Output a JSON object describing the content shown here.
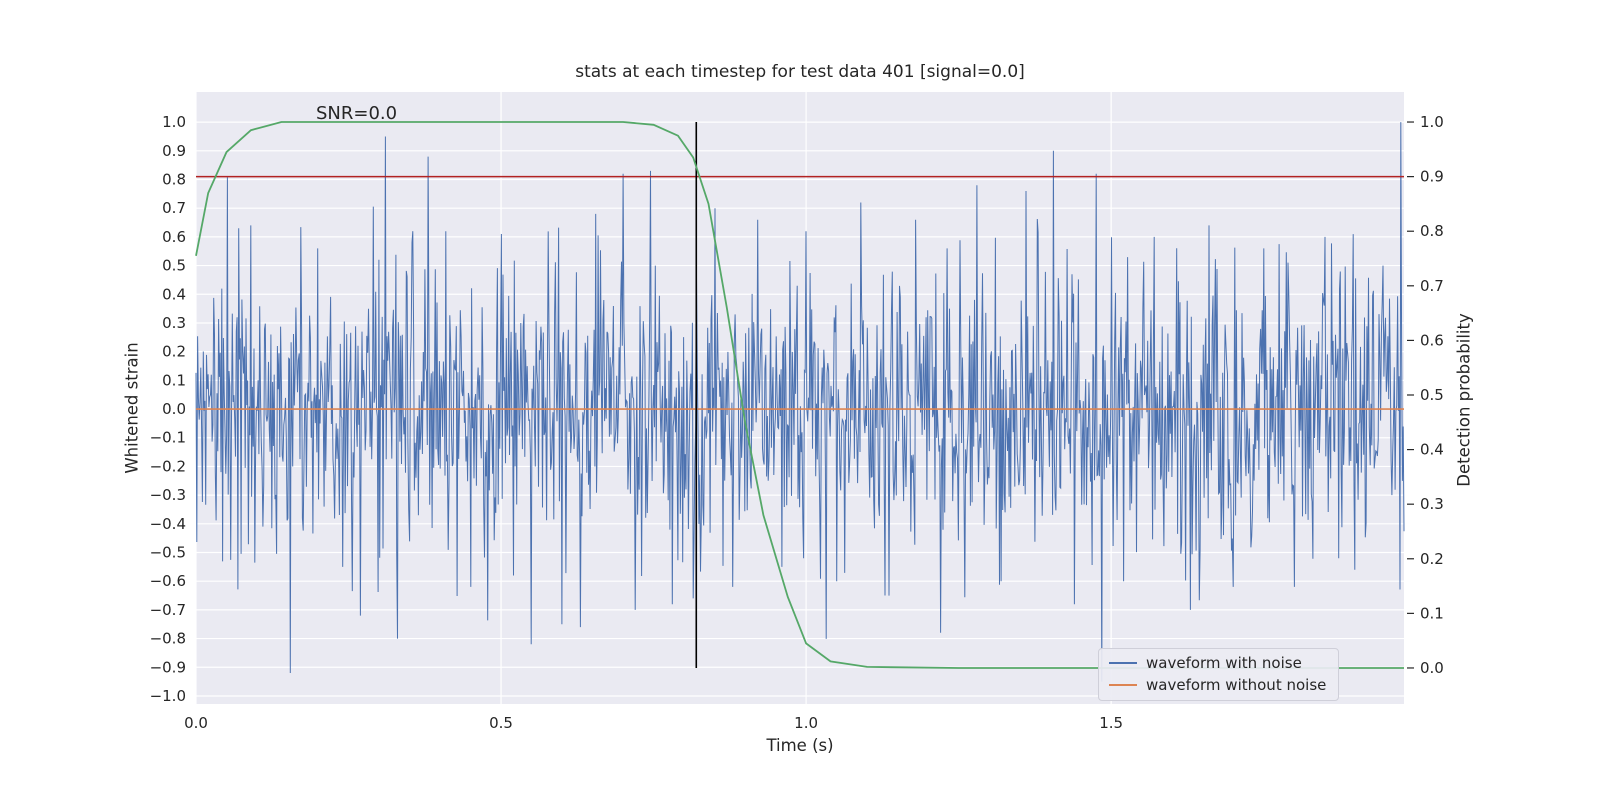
{
  "chart_data": {
    "type": "line",
    "title": "stats at each timestep for test data 401 [signal=0.0]",
    "xlabel": "Time (s)",
    "ylabel_left": "Whitened strain",
    "ylabel_right": "Detection probability",
    "annotation": {
      "text": "SNR=0.0",
      "x": 0.195,
      "y_left": 1.01
    },
    "xlim": [
      0.0,
      1.98
    ],
    "ylim_left": [
      -1.028,
      1.105
    ],
    "ylim_right": [
      -0.066,
      1.055
    ],
    "grid": true,
    "legend_position": "lower right",
    "colors": {
      "noise": "#4c72b0",
      "clean": "#dd8452",
      "detection": "#55a868",
      "threshold": "#b22222",
      "event": "#000000",
      "plot_bg": "#eaeaf2",
      "grid": "#ffffff",
      "text": "#262626"
    },
    "xticks": [
      {
        "v": 0.0,
        "label": "0.0"
      },
      {
        "v": 0.5,
        "label": "0.5"
      },
      {
        "v": 1.0,
        "label": "1.0"
      },
      {
        "v": 1.5,
        "label": "1.5"
      }
    ],
    "yticks_left": [
      {
        "v": 1.0,
        "label": "1.0"
      },
      {
        "v": 0.9,
        "label": "0.9"
      },
      {
        "v": 0.8,
        "label": "0.8"
      },
      {
        "v": 0.7,
        "label": "0.7"
      },
      {
        "v": 0.6,
        "label": "0.6"
      },
      {
        "v": 0.5,
        "label": "0.5"
      },
      {
        "v": 0.4,
        "label": "0.4"
      },
      {
        "v": 0.3,
        "label": "0.3"
      },
      {
        "v": 0.2,
        "label": "0.2"
      },
      {
        "v": 0.1,
        "label": "0.1"
      },
      {
        "v": 0.0,
        "label": "0.0"
      },
      {
        "v": -0.1,
        "label": "−0.1"
      },
      {
        "v": -0.2,
        "label": "−0.2"
      },
      {
        "v": -0.3,
        "label": "−0.3"
      },
      {
        "v": -0.4,
        "label": "−0.4"
      },
      {
        "v": -0.5,
        "label": "−0.5"
      },
      {
        "v": -0.6,
        "label": "−0.6"
      },
      {
        "v": -0.7,
        "label": "−0.7"
      },
      {
        "v": -0.8,
        "label": "−0.8"
      },
      {
        "v": -0.9,
        "label": "−0.9"
      },
      {
        "v": -1.0,
        "label": "−1.0"
      }
    ],
    "yticks_right": [
      {
        "v": 1.0,
        "label": "1.0"
      },
      {
        "v": 0.9,
        "label": "0.9"
      },
      {
        "v": 0.8,
        "label": "0.8"
      },
      {
        "v": 0.7,
        "label": "0.7"
      },
      {
        "v": 0.6,
        "label": "0.6"
      },
      {
        "v": 0.5,
        "label": "0.5"
      },
      {
        "v": 0.4,
        "label": "0.4"
      },
      {
        "v": 0.3,
        "label": "0.3"
      },
      {
        "v": 0.2,
        "label": "0.2"
      },
      {
        "v": 0.1,
        "label": "0.1"
      },
      {
        "v": 0.0,
        "label": "0.0"
      }
    ],
    "series": {
      "waveform_with_noise": {
        "label": "waveform with noise",
        "axis": "left",
        "noise": {
          "seed": 11,
          "n": 1500,
          "std": 0.24,
          "clip": 0.95
        },
        "spikes": [
          [
            0.07,
            0.63
          ],
          [
            0.09,
            0.64
          ],
          [
            0.155,
            -0.92
          ],
          [
            0.2,
            0.56
          ],
          [
            0.24,
            -0.55
          ],
          [
            0.27,
            -0.72
          ],
          [
            0.3,
            0.52
          ],
          [
            0.33,
            -0.8
          ],
          [
            0.355,
            0.62
          ],
          [
            0.38,
            0.88
          ],
          [
            0.41,
            0.62
          ],
          [
            0.45,
            -0.62
          ],
          [
            0.5,
            0.61
          ],
          [
            0.52,
            -0.58
          ],
          [
            0.55,
            -0.82
          ],
          [
            0.6,
            -0.75
          ],
          [
            0.63,
            -0.76
          ],
          [
            0.655,
            0.68
          ],
          [
            0.7,
            0.82
          ],
          [
            0.72,
            -0.7
          ],
          [
            0.745,
            0.83
          ],
          [
            0.78,
            -0.68
          ],
          [
            0.815,
            -0.66
          ],
          [
            0.85,
            0.7
          ],
          [
            0.88,
            -0.62
          ],
          [
            0.92,
            0.66
          ],
          [
            0.96,
            -0.55
          ],
          [
            1.0,
            0.62
          ],
          [
            1.05,
            -0.6
          ],
          [
            1.09,
            0.72
          ],
          [
            1.13,
            -0.65
          ],
          [
            1.18,
            0.66
          ],
          [
            1.22,
            -0.78
          ],
          [
            1.28,
            0.78
          ],
          [
            1.32,
            -0.6
          ],
          [
            1.36,
            0.76
          ],
          [
            1.405,
            0.9
          ],
          [
            1.44,
            -0.68
          ],
          [
            1.475,
            0.82
          ],
          [
            1.52,
            -0.6
          ],
          [
            1.57,
            0.6
          ],
          [
            1.63,
            -0.7
          ],
          [
            1.66,
            0.64
          ],
          [
            1.7,
            -0.62
          ],
          [
            1.75,
            0.56
          ],
          [
            1.8,
            -0.62
          ],
          [
            1.85,
            0.6
          ],
          [
            1.9,
            -0.56
          ],
          [
            1.945,
            0.5
          ],
          [
            1.975,
            1.0
          ]
        ]
      },
      "waveform_without_noise": {
        "label": "waveform without noise",
        "axis": "left",
        "value": 0.0
      },
      "detection_probability": {
        "axis": "right",
        "points": [
          [
            0.0,
            0.755
          ],
          [
            0.02,
            0.87
          ],
          [
            0.05,
            0.945
          ],
          [
            0.09,
            0.985
          ],
          [
            0.14,
            1.0
          ],
          [
            0.7,
            1.0
          ],
          [
            0.75,
            0.995
          ],
          [
            0.79,
            0.975
          ],
          [
            0.815,
            0.935
          ],
          [
            0.84,
            0.85
          ],
          [
            0.87,
            0.66
          ],
          [
            0.9,
            0.45
          ],
          [
            0.93,
            0.28
          ],
          [
            0.97,
            0.13
          ],
          [
            1.0,
            0.045
          ],
          [
            1.04,
            0.012
          ],
          [
            1.1,
            0.002
          ],
          [
            1.25,
            0.0
          ],
          [
            1.98,
            0.0
          ]
        ]
      },
      "threshold_line": {
        "axis": "right",
        "value": 0.9
      },
      "event_line": {
        "x": 0.82,
        "y_right": [
          0.0,
          1.0
        ]
      }
    },
    "legend": {
      "entries": [
        {
          "label": "waveform with noise",
          "color": "#4c72b0"
        },
        {
          "label": "waveform without noise",
          "color": "#dd8452"
        }
      ]
    }
  }
}
